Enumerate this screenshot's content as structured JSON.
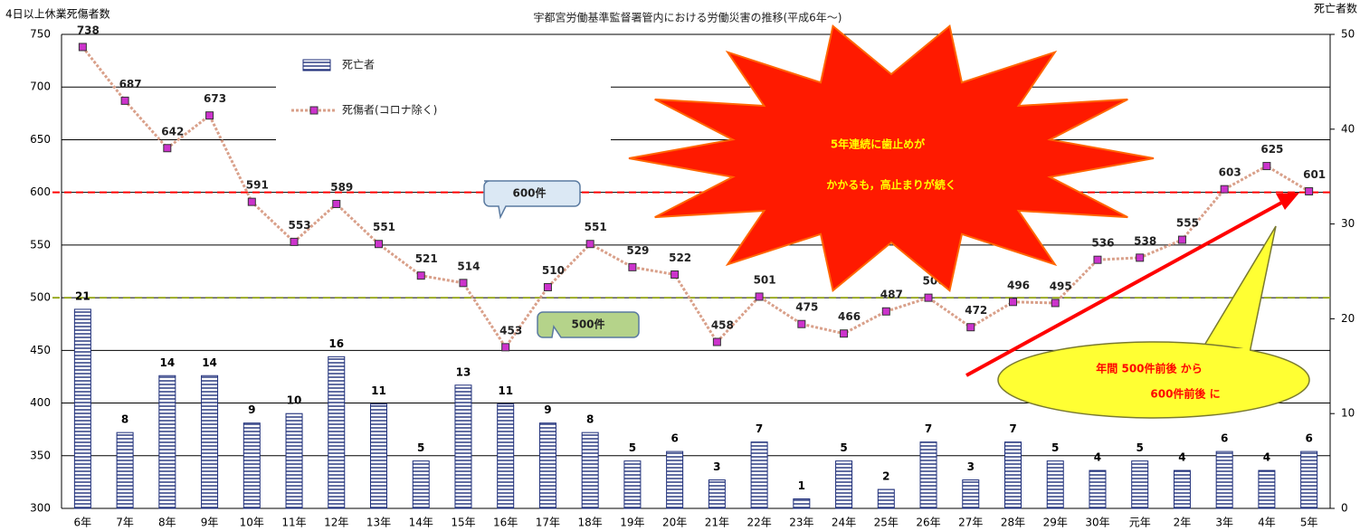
{
  "chart_data": {
    "type": "combo",
    "title": "宇都宮労働基準監督署管内における労働災害の推移(平成6年～)",
    "y_label": "4日以上休業死傷者数",
    "y2_label": "死亡者数",
    "categories": [
      "6年",
      "7年",
      "8年",
      "9年",
      "10年",
      "11年",
      "12年",
      "13年",
      "14年",
      "15年",
      "16年",
      "17年",
      "18年",
      "19年",
      "20年",
      "21年",
      "22年",
      "23年",
      "24年",
      "25年",
      "26年",
      "27年",
      "28年",
      "29年",
      "30年",
      "元年",
      "2年",
      "3年",
      "4年",
      "5年"
    ],
    "series": [
      {
        "name": "死亡者",
        "type": "bar",
        "axis": "y2",
        "color": "#1f2f7a",
        "values": [
          21,
          8,
          14,
          14,
          9,
          10,
          16,
          11,
          5,
          13,
          11,
          9,
          8,
          5,
          6,
          3,
          7,
          1,
          5,
          2,
          7,
          3,
          7,
          5,
          4,
          5,
          4,
          6,
          4,
          6
        ]
      },
      {
        "name": "死傷者(コロナ除く)",
        "type": "line",
        "color": "#cc33cc",
        "line_color": "#d9a08a",
        "values": [
          738,
          687,
          642,
          673,
          591,
          553,
          589,
          551,
          521,
          514,
          453,
          510,
          551,
          529,
          522,
          458,
          501,
          475,
          466,
          487,
          500,
          472,
          496,
          495,
          536,
          538,
          555,
          603,
          625,
          601
        ]
      }
    ],
    "ylim": [
      300,
      750
    ],
    "yticks": [
      300,
      350,
      400,
      450,
      500,
      550,
      600,
      650,
      700,
      750
    ],
    "y2lim": [
      0,
      50
    ],
    "y2ticks": [
      0,
      10,
      20,
      30,
      40,
      50
    ],
    "grid": true,
    "reference_lines": [
      {
        "value": 600,
        "label": "600件",
        "color": "#ff0000",
        "box_color": "#dbe8f4"
      },
      {
        "value": 500,
        "label": "500件",
        "color": "#99aa22",
        "box_color": "#b5d38a"
      }
    ],
    "annotations": {
      "burst": [
        "5年連続に歯止めが",
        "かかるも，高止まりが続く"
      ],
      "balloon": [
        "年間 500件前後 から",
        "600件前後 に"
      ]
    }
  }
}
